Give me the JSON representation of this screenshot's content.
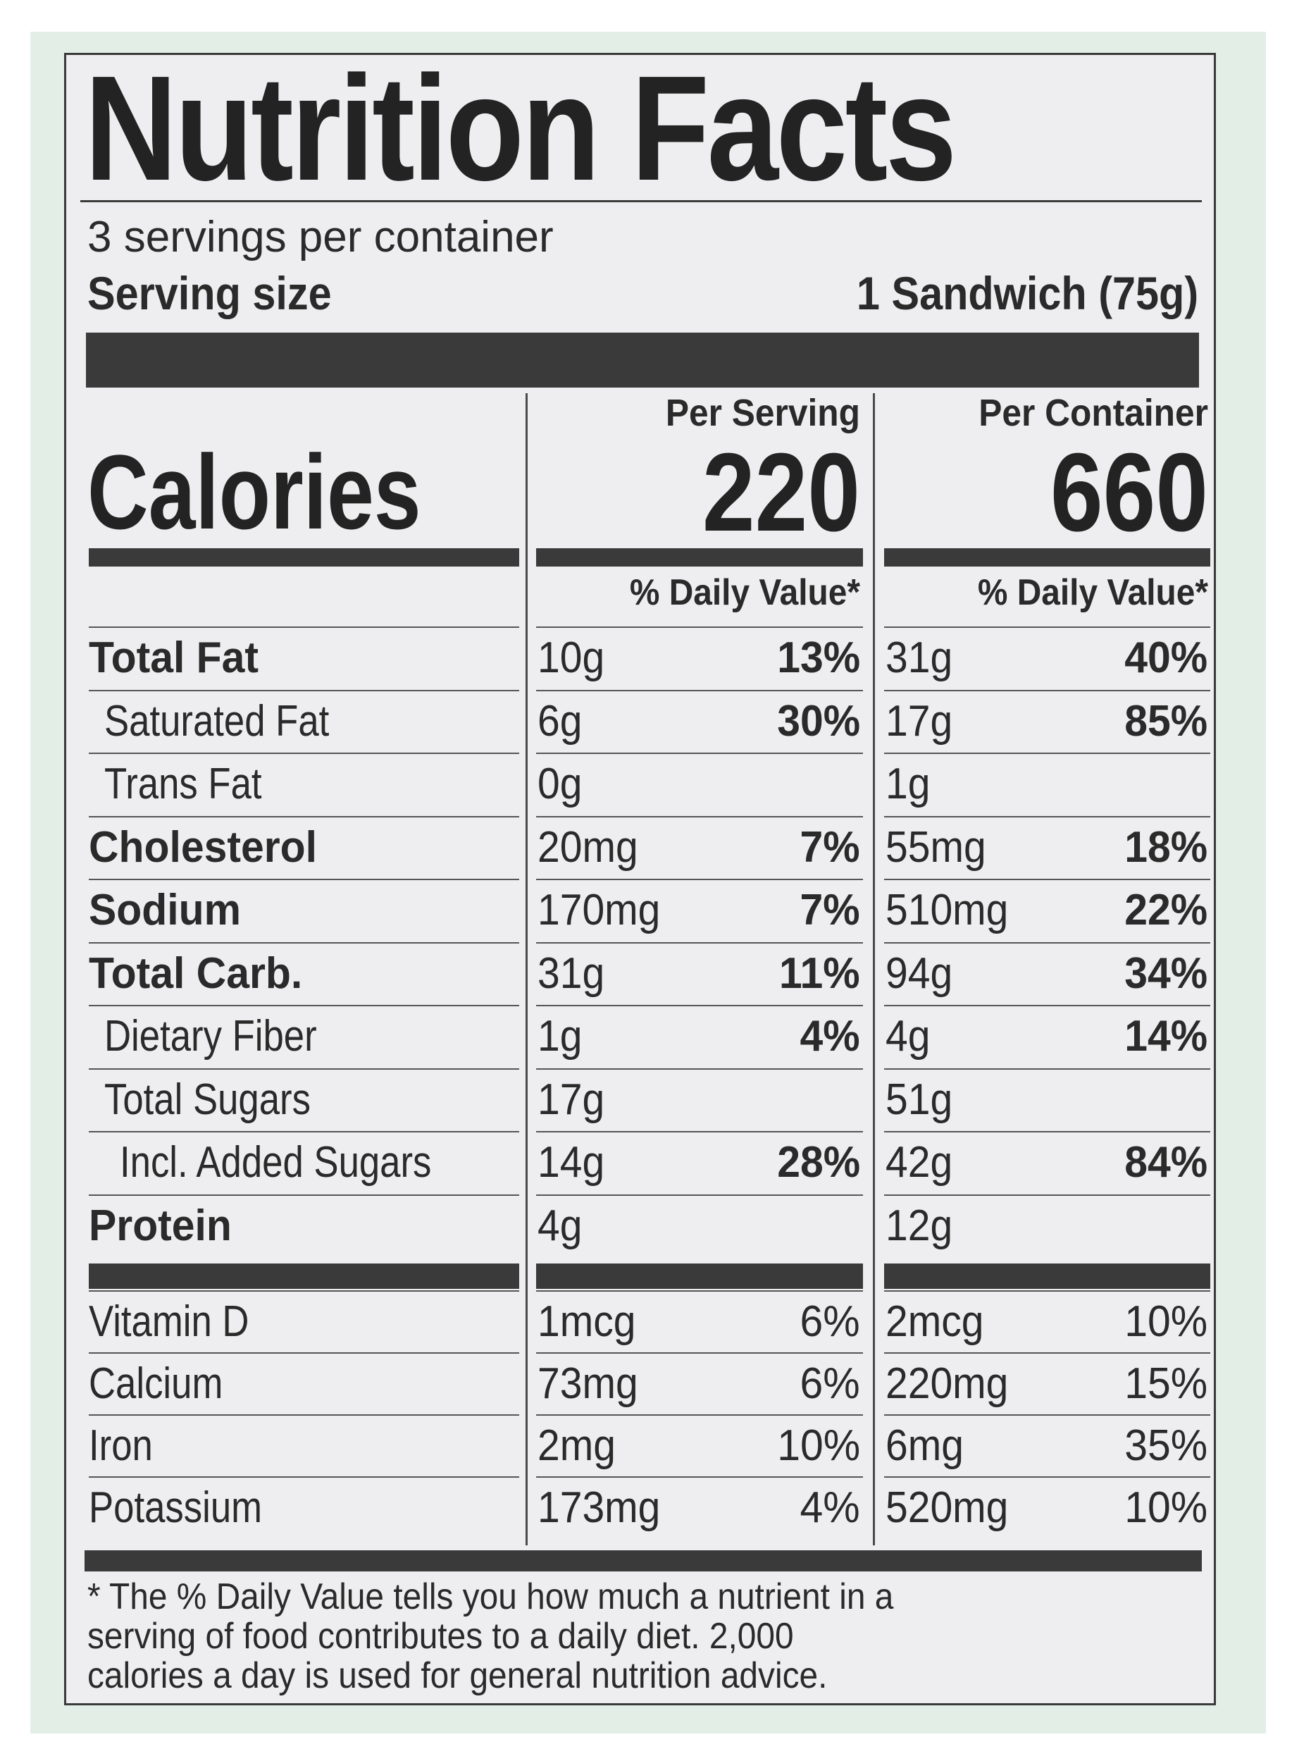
{
  "title": "Nutrition Facts",
  "servings_per_container": "3 servings per container",
  "serving_size": {
    "label": "Serving size",
    "value": "1 Sandwich (75g)"
  },
  "columns": [
    {
      "header": "Per Serving",
      "calories": "220",
      "dv_header": "% Daily Value*"
    },
    {
      "header": "Per Container",
      "calories": "660",
      "dv_header": "% Daily Value*"
    }
  ],
  "calories_label": "Calories",
  "nutrients": [
    {
      "name": "Total Fat",
      "bold": true,
      "indent": 0,
      "per_serving": {
        "amount": "10g",
        "dv": "13%"
      },
      "per_container": {
        "amount": "31g",
        "dv": "40%"
      }
    },
    {
      "name": "Saturated Fat",
      "bold": false,
      "indent": 1,
      "per_serving": {
        "amount": "6g",
        "dv": "30%"
      },
      "per_container": {
        "amount": "17g",
        "dv": "85%"
      }
    },
    {
      "name": "Trans Fat",
      "bold": false,
      "indent": 1,
      "per_serving": {
        "amount": "0g",
        "dv": ""
      },
      "per_container": {
        "amount": "1g",
        "dv": ""
      }
    },
    {
      "name": "Cholesterol",
      "bold": true,
      "indent": 0,
      "per_serving": {
        "amount": "20mg",
        "dv": "7%"
      },
      "per_container": {
        "amount": "55mg",
        "dv": "18%"
      }
    },
    {
      "name": "Sodium",
      "bold": true,
      "indent": 0,
      "per_serving": {
        "amount": "170mg",
        "dv": "7%"
      },
      "per_container": {
        "amount": "510mg",
        "dv": "22%"
      }
    },
    {
      "name": "Total Carb.",
      "bold": true,
      "indent": 0,
      "per_serving": {
        "amount": "31g",
        "dv": "11%"
      },
      "per_container": {
        "amount": "94g",
        "dv": "34%"
      }
    },
    {
      "name": "Dietary Fiber",
      "bold": false,
      "indent": 1,
      "per_serving": {
        "amount": "1g",
        "dv": "4%"
      },
      "per_container": {
        "amount": "4g",
        "dv": "14%"
      }
    },
    {
      "name": "Total Sugars",
      "bold": false,
      "indent": 1,
      "per_serving": {
        "amount": "17g",
        "dv": ""
      },
      "per_container": {
        "amount": "51g",
        "dv": ""
      }
    },
    {
      "name": "Incl. Added Sugars",
      "bold": false,
      "indent": 2,
      "per_serving": {
        "amount": "14g",
        "dv": "28%"
      },
      "per_container": {
        "amount": "42g",
        "dv": "84%"
      }
    },
    {
      "name": "Protein",
      "bold": true,
      "indent": 0,
      "per_serving": {
        "amount": "4g",
        "dv": ""
      },
      "per_container": {
        "amount": "12g",
        "dv": ""
      }
    }
  ],
  "vitamins": [
    {
      "name": "Vitamin D",
      "per_serving": {
        "amount": "1mcg",
        "dv": "6%"
      },
      "per_container": {
        "amount": "2mcg",
        "dv": "10%"
      }
    },
    {
      "name": "Calcium",
      "per_serving": {
        "amount": "73mg",
        "dv": "6%"
      },
      "per_container": {
        "amount": "220mg",
        "dv": "15%"
      }
    },
    {
      "name": "Iron",
      "per_serving": {
        "amount": "2mg",
        "dv": "10%"
      },
      "per_container": {
        "amount": "6mg",
        "dv": "35%"
      }
    },
    {
      "name": "Potassium",
      "per_serving": {
        "amount": "173mg",
        "dv": "4%"
      },
      "per_container": {
        "amount": "520mg",
        "dv": "10%"
      }
    }
  ],
  "footnote": [
    "* The % Daily Value tells you how much a nutrient in a",
    "serving of food contributes to a daily diet. 2,000",
    "calories a day is used for general nutrition advice."
  ],
  "colors": {
    "background": "#e3efe6",
    "label": "#eeeef0",
    "ink": "#2a2a2a"
  }
}
